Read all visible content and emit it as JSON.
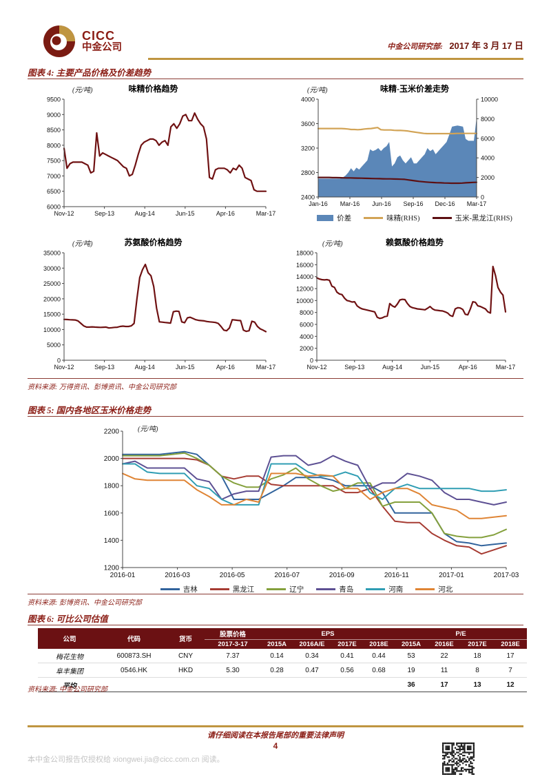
{
  "page": {
    "brand": {
      "logo_text_en": "CICC",
      "logo_text_cn": "中金公司"
    },
    "header": {
      "dept": "中金公司研究部:",
      "date": "2017 年 3 月 17 日"
    },
    "footer": {
      "legal": "请仔细阅读在本报告尾部的重要法律声明",
      "page_number": "4",
      "watermark": "本中金公司报告仅授权给 xiongwei.jia@cicc.com.cn 阅读。"
    },
    "colors": {
      "brand_maroon": "#8b1d15",
      "gold": "#bf9540",
      "table_header_bg": "#6b1113"
    }
  },
  "sections": {
    "fig4": {
      "title": "图表 4: 主要产品价格及价差趋势",
      "source": "资料来源: 万得资讯、彭博资讯、中金公司研究部"
    },
    "fig5": {
      "title": "图表 5: 国内各地区玉米价格走势",
      "source": "资料来源: 彭博资讯、中金公司研究部"
    },
    "fig6": {
      "title": "图表 6: 可比公司估值",
      "source": "资料来源: 中金公司研究部"
    }
  },
  "chart_data": [
    {
      "id": "msg-price-trend",
      "type": "line",
      "title": "味精价格趋势",
      "unit": "(元/吨)",
      "ylim": [
        6000,
        9500
      ],
      "yticks": [
        6000,
        6500,
        7000,
        7500,
        8000,
        8500,
        9000,
        9500
      ],
      "xticks": [
        "Nov-12",
        "Sep-13",
        "Aug-14",
        "Jun-15",
        "Apr-16",
        "Mar-17"
      ],
      "series": [
        {
          "name": "味精价格",
          "color": "#6f1112",
          "values": [
            7900,
            7250,
            7400,
            7450,
            7450,
            7450,
            7450,
            7400,
            7350,
            7100,
            7150,
            8400,
            7650,
            7750,
            7700,
            7650,
            7600,
            7550,
            7500,
            7400,
            7300,
            7250,
            7000,
            7050,
            7350,
            7700,
            8000,
            8100,
            8150,
            8200,
            8200,
            8150,
            8000,
            8100,
            8150,
            8000,
            8600,
            8700,
            8550,
            8700,
            8950,
            9000,
            8800,
            8800,
            9050,
            8850,
            8700,
            8600,
            8200,
            6950,
            6900,
            7200,
            7250,
            7250,
            7250,
            7200,
            7100,
            7250,
            7200,
            7350,
            7250,
            6950,
            6900,
            6850,
            6550,
            6500,
            6500,
            6500,
            6500
          ]
        }
      ]
    },
    {
      "id": "msg-corn-spread",
      "type": "area-line",
      "title": "味精-玉米价差走势",
      "unit": "(元/吨)",
      "ylim": [
        2400,
        4000
      ],
      "yticks": [
        2400,
        2800,
        3200,
        3600,
        4000
      ],
      "y2lim": [
        0,
        10000
      ],
      "y2ticks": [
        0,
        2000,
        4000,
        6000,
        8000,
        10000
      ],
      "xticks": [
        "Jan-16",
        "Mar-16",
        "Jun-16",
        "Sep-16",
        "Dec-16",
        "Mar-17"
      ],
      "area": {
        "name": "价差",
        "color": "#5b87b8",
        "axis": "left",
        "values": [
          2700,
          2700,
          2700,
          2700,
          2700,
          2700,
          2700,
          2700,
          2700,
          2720,
          2750,
          2800,
          2870,
          2820,
          2880,
          2850,
          2900,
          2950,
          3000,
          3180,
          3150,
          3170,
          3200,
          3150,
          3200,
          3230,
          3300,
          2900,
          2950,
          3050,
          3080,
          3000,
          2950,
          3000,
          3050,
          2950,
          2950,
          3000,
          3050,
          3100,
          3200,
          3150,
          3180,
          3100,
          3150,
          3200,
          3250,
          3300,
          3420,
          3550,
          3560,
          3570,
          3560,
          3550,
          3350,
          3320,
          3320,
          3320,
          3700
        ]
      },
      "series": [
        {
          "name": "味精(RHS)",
          "color": "#d2a355",
          "axis": "right",
          "values": [
            7000,
            7000,
            7000,
            7000,
            7000,
            7000,
            7000,
            7000,
            6980,
            6950,
            6900,
            6900,
            6880,
            6900,
            6950,
            6980,
            7000,
            7050,
            7100,
            6880,
            6850,
            6850,
            6850,
            6820,
            6800,
            6800,
            6780,
            6750,
            6700,
            6650,
            6600,
            6550,
            6500,
            6480,
            6480,
            6480,
            6480,
            6480,
            6480,
            6480,
            6480,
            6480,
            6500,
            6500,
            6500,
            6500,
            6500,
            6500,
            6500
          ]
        },
        {
          "name": "玉米-黑龙江(RHS)",
          "color": "#5c0f12",
          "axis": "right",
          "values": [
            2000,
            2000,
            2000,
            2000,
            1980,
            1980,
            1970,
            1960,
            1950,
            1950,
            1940,
            1930,
            1920,
            1910,
            1900,
            1890,
            1880,
            1870,
            1860,
            1850,
            1850,
            1840,
            1830,
            1820,
            1800,
            1750,
            1700,
            1650,
            1600,
            1560,
            1530,
            1500,
            1480,
            1460,
            1450,
            1430,
            1420,
            1410,
            1410,
            1410,
            1420,
            1450,
            1470,
            1490,
            1500
          ]
        }
      ],
      "legend": [
        {
          "label": "价差",
          "swatch": "area",
          "color": "#5b87b8"
        },
        {
          "label": "味精(RHS)",
          "swatch": "line",
          "color": "#d2a355"
        },
        {
          "label": "玉米-黑龙江(RHS)",
          "swatch": "line",
          "color": "#5c0f12"
        }
      ]
    },
    {
      "id": "threonine-price-trend",
      "type": "line",
      "title": "苏氨酸价格趋势",
      "unit": "(元/吨)",
      "ylim": [
        0,
        35000
      ],
      "yticks": [
        0,
        5000,
        10000,
        15000,
        20000,
        25000,
        30000,
        35000
      ],
      "xticks": [
        "Nov-12",
        "Sep-13",
        "Aug-14",
        "Jun-15",
        "Apr-16",
        "Mar-17"
      ],
      "series": [
        {
          "name": "苏氨酸价格",
          "color": "#6f1112",
          "values": [
            13300,
            13250,
            13200,
            13150,
            13100,
            12800,
            12000,
            11200,
            10800,
            10800,
            10850,
            10800,
            10750,
            10700,
            10750,
            10800,
            10500,
            10600,
            10700,
            10750,
            11000,
            11100,
            11000,
            11000,
            11200,
            12000,
            20000,
            27000,
            29500,
            31200,
            28500,
            27500,
            24000,
            17000,
            12500,
            12400,
            12300,
            12200,
            12100,
            15800,
            16000,
            15900,
            12500,
            12200,
            13800,
            14000,
            13600,
            13200,
            13000,
            12900,
            12800,
            12600,
            12500,
            12400,
            12300,
            12000,
            11000,
            9800,
            9600,
            10500,
            13200,
            13100,
            13000,
            12900,
            9800,
            9400,
            9600,
            12700,
            12400,
            11000,
            10200,
            9800,
            9300
          ]
        }
      ]
    },
    {
      "id": "lysine-price-trend",
      "type": "line",
      "title": "赖氨酸价格趋势",
      "unit": "(元/吨)",
      "ylim": [
        0,
        18000
      ],
      "yticks": [
        0,
        2000,
        4000,
        6000,
        8000,
        10000,
        12000,
        14000,
        16000,
        18000
      ],
      "xticks": [
        "Nov-12",
        "Sep-13",
        "Aug-14",
        "Jun-15",
        "Apr-16",
        "Mar-17"
      ],
      "series": [
        {
          "name": "赖氨酸价格",
          "color": "#6f1112",
          "values": [
            13800,
            13600,
            13500,
            13450,
            13500,
            13400,
            12400,
            12200,
            11400,
            11100,
            11000,
            10400,
            10000,
            9900,
            9750,
            9800,
            9100,
            8800,
            8600,
            8500,
            8400,
            8300,
            8200,
            8100,
            7200,
            7000,
            7100,
            7300,
            7400,
            9500,
            9100,
            8900,
            9400,
            10100,
            10200,
            10150,
            9500,
            9000,
            8800,
            8700,
            8600,
            8550,
            8500,
            8450,
            8700,
            9000,
            8600,
            8400,
            8350,
            8300,
            8250,
            8100,
            7900,
            7500,
            7350,
            8600,
            8800,
            8750,
            8500,
            7700,
            7600,
            8600,
            9800,
            9700,
            9100,
            9000,
            8800,
            8600,
            8100,
            7900,
            15700,
            14200,
            12200,
            11400,
            10900,
            8100
          ]
        }
      ]
    },
    {
      "id": "corn-regional-prices",
      "type": "line",
      "title": "",
      "unit": "(元/吨)",
      "ylim": [
        1200,
        2200
      ],
      "yticks": [
        1200,
        1400,
        1600,
        1800,
        2000,
        2200
      ],
      "xticks": [
        "2016-01",
        "2016-03",
        "2016-05",
        "2016-07",
        "2016-09",
        "2016-11",
        "2017-01",
        "2017-03"
      ],
      "series": [
        {
          "name": "吉林",
          "color": "#31639c",
          "values": [
            2030,
            2030,
            2030,
            2030,
            2040,
            2050,
            2030,
            1950,
            1870,
            1700,
            1700,
            1700,
            1750,
            1800,
            1860,
            1860,
            1860,
            1840,
            1800,
            1800,
            1800,
            1750,
            1600,
            1600,
            1600,
            1600,
            1450,
            1390,
            1380,
            1360,
            1370,
            1380
          ]
        },
        {
          "name": "黑龙江",
          "color": "#a63b32",
          "values": [
            2000,
            2000,
            2000,
            2000,
            2000,
            2000,
            1990,
            1950,
            1870,
            1850,
            1870,
            1870,
            1810,
            1800,
            1800,
            1800,
            1800,
            1800,
            1750,
            1750,
            1780,
            1650,
            1540,
            1530,
            1530,
            1450,
            1400,
            1360,
            1350,
            1300,
            1330,
            1360
          ]
        },
        {
          "name": "辽宁",
          "color": "#84a03c",
          "values": [
            2020,
            2020,
            2020,
            2020,
            2030,
            2040,
            2000,
            1950,
            1870,
            1820,
            1790,
            1790,
            1850,
            1880,
            1930,
            1850,
            1800,
            1760,
            1780,
            1820,
            1820,
            1650,
            1680,
            1680,
            1680,
            1600,
            1450,
            1430,
            1420,
            1420,
            1440,
            1480
          ]
        },
        {
          "name": "青岛",
          "color": "#5d5093",
          "values": [
            1960,
            1980,
            1930,
            1930,
            1930,
            1930,
            1850,
            1830,
            1700,
            1740,
            1760,
            1760,
            2010,
            2020,
            2020,
            1950,
            1970,
            2020,
            1980,
            1950,
            1780,
            1820,
            1820,
            1890,
            1870,
            1840,
            1750,
            1700,
            1700,
            1680,
            1660,
            1680
          ]
        },
        {
          "name": "河南",
          "color": "#2f9db3",
          "values": [
            1960,
            1960,
            1900,
            1890,
            1890,
            1890,
            1800,
            1780,
            1700,
            1660,
            1660,
            1660,
            1960,
            1960,
            1960,
            1900,
            1870,
            1870,
            1900,
            1870,
            1750,
            1700,
            1780,
            1810,
            1780,
            1780,
            1780,
            1780,
            1780,
            1760,
            1760,
            1770
          ]
        },
        {
          "name": "河北",
          "color": "#df8434",
          "values": [
            1890,
            1850,
            1840,
            1840,
            1840,
            1840,
            1770,
            1720,
            1660,
            1660,
            1700,
            1680,
            1890,
            1890,
            1890,
            1870,
            1880,
            1870,
            1780,
            1780,
            1700,
            1750,
            1780,
            1780,
            1740,
            1660,
            1640,
            1620,
            1560,
            1560,
            1570,
            1580
          ]
        }
      ],
      "legend": [
        {
          "label": "吉林",
          "swatch": "line",
          "color": "#31639c"
        },
        {
          "label": "黑龙江",
          "swatch": "line",
          "color": "#a63b32"
        },
        {
          "label": "辽宁",
          "swatch": "line",
          "color": "#84a03c"
        },
        {
          "label": "青岛",
          "swatch": "line",
          "color": "#5d5093"
        },
        {
          "label": "河南",
          "swatch": "line",
          "color": "#2f9db3"
        },
        {
          "label": "河北",
          "swatch": "line",
          "color": "#df8434"
        }
      ]
    },
    {
      "id": "comparable-valuation",
      "type": "table",
      "header": {
        "col_company": "公司",
        "col_code": "代码",
        "col_currency": "货币",
        "col_price_group": "股票价格",
        "col_price_date": "2017-3-17",
        "col_eps_group": "EPS",
        "col_pe_group": "P/E",
        "eps_cols": [
          "2015A",
          "2016A/E",
          "2017E",
          "2018E"
        ],
        "pe_cols": [
          "2015A",
          "2016E",
          "2017E",
          "2018E"
        ]
      },
      "rows": [
        [
          "梅花生物",
          "600873.SH",
          "CNY",
          "7.37",
          "0.14",
          "0.34",
          "0.41",
          "0.44",
          "53",
          "22",
          "18",
          "17"
        ],
        [
          "阜丰集团",
          "0546.HK",
          "HKD",
          "5.30",
          "0.28",
          "0.47",
          "0.56",
          "0.68",
          "19",
          "11",
          "8",
          "7"
        ]
      ],
      "avg_row": [
        "平均",
        "",
        "",
        "",
        "",
        "",
        "",
        "",
        "36",
        "17",
        "13",
        "12"
      ]
    }
  ]
}
